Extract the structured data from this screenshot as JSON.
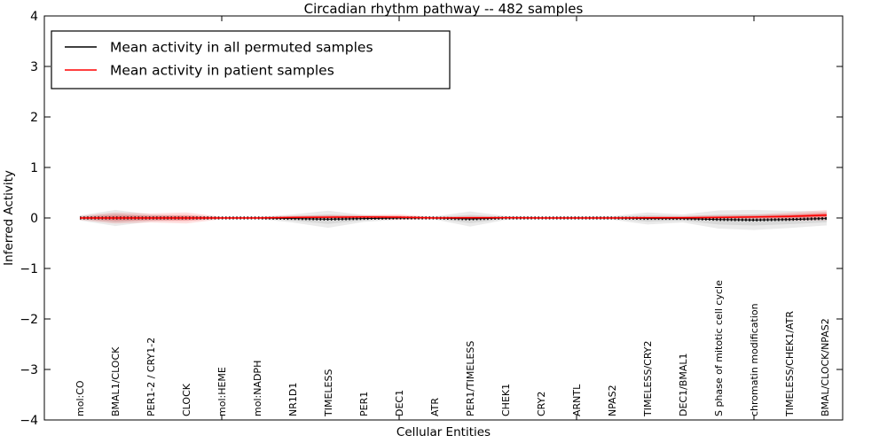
{
  "title": "Circadian rhythm pathway -- 482 samples",
  "axes": {
    "xlabel": "Cellular Entities",
    "ylabel": "Inferred Activity"
  },
  "legend": {
    "position": "upper left",
    "items": [
      {
        "label": "Mean activity in all permuted samples",
        "color": "#000000"
      },
      {
        "label": "Mean activity in patient samples",
        "color": "#ff0000"
      }
    ]
  },
  "chart_data": {
    "type": "line",
    "title": "Circadian rhythm pathway -- 482 samples",
    "xlabel": "Cellular Entities",
    "ylabel": "Inferred Activity",
    "ylim": [
      -4,
      4
    ],
    "yticks": [
      4,
      3,
      2,
      1,
      0,
      -1,
      -2,
      -3,
      -4
    ],
    "grid": false,
    "legend_position": "upper left",
    "categories": [
      "mol:CO",
      "BMAL1/CLOCK",
      "PER1-2 / CRY1-2",
      "CLOCK",
      "mol:HEME",
      "mol:NADPH",
      "NR1D1",
      "TIMELESS",
      "PER1",
      "DEC1",
      "ATR",
      "PER1/TIMELESS",
      "CHEK1",
      "CRY2",
      "ARNTL",
      "NPAS2",
      "TIMELESS/CRY2",
      "DEC1/BMAL1",
      "S phase of mitotic cell cycle",
      "chromatin modification",
      "TIMELESS/CHEK1/ATR",
      "BMAL/CLOCK/NPAS2"
    ],
    "series": [
      {
        "name": "Mean activity in all permuted samples",
        "color": "#000000",
        "band_color_outer": "rgba(0,0,0,0.08)",
        "band_color_inner": "rgba(0,0,0,0.08)",
        "values": [
          0,
          0,
          0,
          0,
          0,
          0,
          -0.01,
          -0.025,
          -0.01,
          0,
          0,
          -0.02,
          0,
          0,
          0,
          0,
          -0.01,
          -0.01,
          -0.03,
          -0.04,
          -0.03,
          -0.01
        ],
        "band_halfwidth": [
          0.05,
          0.16,
          0.07,
          0.05,
          0.02,
          0.02,
          0.08,
          0.17,
          0.07,
          0.035,
          0.03,
          0.15,
          0.04,
          0.025,
          0.03,
          0.035,
          0.12,
          0.08,
          0.18,
          0.2,
          0.17,
          0.14
        ]
      },
      {
        "name": "Mean activity in patient samples",
        "color": "#ff0000",
        "band_color_outer": "rgba(255,0,0,0.12)",
        "band_color_inner": "rgba(255,0,0,0.18)",
        "band_color_core": "rgba(255,0,0,0.35)",
        "values": [
          0,
          0,
          0,
          0,
          0,
          0,
          0.01,
          0.015,
          0.02,
          0.015,
          0,
          0.005,
          0.005,
          0,
          0,
          0,
          0.005,
          0.005,
          0.01,
          0.02,
          0.03,
          0.055
        ],
        "band_halfwidth": [
          0.04,
          0.11,
          0.09,
          0.11,
          0.025,
          0.025,
          0.035,
          0.045,
          0.04,
          0.055,
          0.025,
          0.035,
          0.025,
          0.02,
          0.02,
          0.025,
          0.03,
          0.035,
          0.045,
          0.05,
          0.08,
          0.1
        ]
      }
    ]
  }
}
